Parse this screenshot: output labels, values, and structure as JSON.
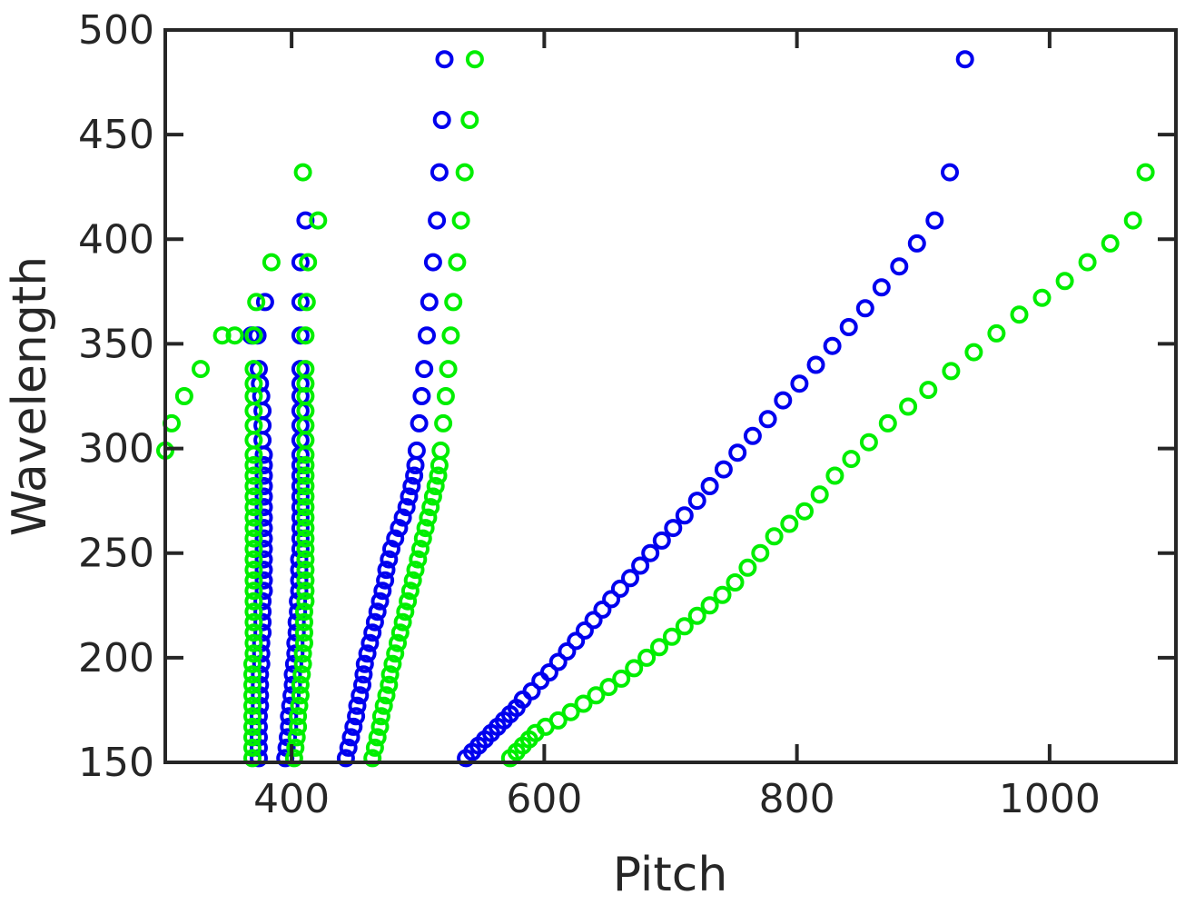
{
  "chart_data": {
    "type": "scatter",
    "xlabel": "Pitch",
    "ylabel": "Wavelength",
    "xlim": [
      300,
      1100
    ],
    "ylim": [
      150,
      500
    ],
    "xticks": [
      400,
      600,
      800,
      1000
    ],
    "yticks": [
      150,
      200,
      250,
      300,
      350,
      400,
      450,
      500
    ],
    "grid": false,
    "colors": {
      "blue": "#0000ee",
      "green": "#00ee00"
    },
    "series": [
      {
        "color": "#0000ee",
        "points": [
          [
            374,
            152
          ],
          [
            374,
            157
          ],
          [
            374,
            162
          ],
          [
            374,
            167
          ],
          [
            374,
            172
          ],
          [
            375,
            177
          ],
          [
            375,
            182
          ],
          [
            375,
            187
          ],
          [
            375,
            192
          ],
          [
            376,
            197
          ],
          [
            376,
            202
          ],
          [
            376,
            207
          ],
          [
            377,
            212
          ],
          [
            377,
            217
          ],
          [
            377,
            222
          ],
          [
            377,
            227
          ],
          [
            378,
            232
          ],
          [
            378,
            237
          ],
          [
            378,
            242
          ],
          [
            378,
            247
          ],
          [
            378,
            252
          ],
          [
            378,
            257
          ],
          [
            378,
            262
          ],
          [
            378,
            267
          ],
          [
            378,
            272
          ],
          [
            378,
            277
          ],
          [
            378,
            282
          ],
          [
            378,
            287
          ],
          [
            378,
            292
          ],
          [
            378,
            297
          ],
          [
            377,
            304
          ],
          [
            377,
            311
          ],
          [
            377,
            318
          ],
          [
            376,
            325
          ],
          [
            375,
            331
          ],
          [
            374,
            338
          ],
          [
            368,
            354
          ],
          [
            369,
            354
          ],
          [
            373,
            354
          ],
          [
            379,
            370
          ],
          [
            395,
            152
          ],
          [
            396,
            157
          ],
          [
            397,
            162
          ],
          [
            398,
            167
          ],
          [
            398,
            172
          ],
          [
            399,
            177
          ],
          [
            400,
            182
          ],
          [
            401,
            187
          ],
          [
            401,
            192
          ],
          [
            402,
            197
          ],
          [
            403,
            202
          ],
          [
            403,
            207
          ],
          [
            404,
            212
          ],
          [
            404,
            217
          ],
          [
            405,
            222
          ],
          [
            405,
            227
          ],
          [
            406,
            232
          ],
          [
            406,
            237
          ],
          [
            406,
            242
          ],
          [
            406,
            247
          ],
          [
            407,
            252
          ],
          [
            407,
            257
          ],
          [
            407,
            262
          ],
          [
            407,
            267
          ],
          [
            407,
            272
          ],
          [
            407,
            277
          ],
          [
            407,
            282
          ],
          [
            407,
            287
          ],
          [
            407,
            292
          ],
          [
            407,
            297
          ],
          [
            407,
            304
          ],
          [
            407,
            311
          ],
          [
            407,
            318
          ],
          [
            407,
            325
          ],
          [
            407,
            331
          ],
          [
            407,
            338
          ],
          [
            407,
            354
          ],
          [
            407,
            370
          ],
          [
            407,
            389
          ],
          [
            411,
            409
          ],
          [
            443,
            152
          ],
          [
            445,
            157
          ],
          [
            447,
            162
          ],
          [
            449,
            167
          ],
          [
            451,
            172
          ],
          [
            452,
            177
          ],
          [
            454,
            182
          ],
          [
            456,
            187
          ],
          [
            457,
            192
          ],
          [
            458,
            197
          ],
          [
            460,
            202
          ],
          [
            462,
            207
          ],
          [
            464,
            212
          ],
          [
            466,
            217
          ],
          [
            468,
            222
          ],
          [
            470,
            227
          ],
          [
            472,
            232
          ],
          [
            474,
            237
          ],
          [
            475,
            242
          ],
          [
            477,
            247
          ],
          [
            479,
            252
          ],
          [
            482,
            257
          ],
          [
            485,
            262
          ],
          [
            488,
            267
          ],
          [
            491,
            272
          ],
          [
            493,
            277
          ],
          [
            495,
            282
          ],
          [
            497,
            287
          ],
          [
            498,
            292
          ],
          [
            499,
            299
          ],
          [
            501,
            312
          ],
          [
            503,
            325
          ],
          [
            505,
            338
          ],
          [
            507,
            354
          ],
          [
            509,
            370
          ],
          [
            512,
            389
          ],
          [
            515,
            409
          ],
          [
            517,
            432
          ],
          [
            519,
            457
          ],
          [
            521,
            486
          ],
          [
            538,
            152
          ],
          [
            543,
            155
          ],
          [
            548,
            158
          ],
          [
            553,
            161
          ],
          [
            558,
            164
          ],
          [
            563,
            167
          ],
          [
            568,
            170
          ],
          [
            573,
            173
          ],
          [
            578,
            176
          ],
          [
            583,
            180
          ],
          [
            590,
            184
          ],
          [
            597,
            189
          ],
          [
            604,
            193
          ],
          [
            611,
            198
          ],
          [
            618,
            203
          ],
          [
            625,
            208
          ],
          [
            632,
            213
          ],
          [
            639,
            218
          ],
          [
            646,
            223
          ],
          [
            653,
            228
          ],
          [
            660,
            233
          ],
          [
            668,
            238
          ],
          [
            676,
            244
          ],
          [
            684,
            250
          ],
          [
            693,
            256
          ],
          [
            702,
            262
          ],
          [
            711,
            268
          ],
          [
            721,
            275
          ],
          [
            731,
            282
          ],
          [
            742,
            290
          ],
          [
            753,
            298
          ],
          [
            765,
            306
          ],
          [
            777,
            314
          ],
          [
            789,
            323
          ],
          [
            802,
            331
          ],
          [
            815,
            340
          ],
          [
            828,
            349
          ],
          [
            841,
            358
          ],
          [
            854,
            367
          ],
          [
            867,
            377
          ],
          [
            881,
            387
          ],
          [
            895,
            398
          ],
          [
            909,
            409
          ],
          [
            921,
            432
          ],
          [
            933,
            486
          ]
        ]
      },
      {
        "color": "#00ee00",
        "points": [
          [
            300,
            299
          ],
          [
            305,
            312
          ],
          [
            315,
            325
          ],
          [
            328,
            338
          ],
          [
            345,
            354
          ],
          [
            355,
            354
          ],
          [
            372,
            370
          ],
          [
            384,
            389
          ],
          [
            409,
            432
          ],
          [
            369,
            152
          ],
          [
            369,
            157
          ],
          [
            369,
            162
          ],
          [
            369,
            167
          ],
          [
            369,
            172
          ],
          [
            369,
            177
          ],
          [
            369,
            182
          ],
          [
            369,
            187
          ],
          [
            369,
            192
          ],
          [
            369,
            197
          ],
          [
            370,
            202
          ],
          [
            370,
            207
          ],
          [
            370,
            212
          ],
          [
            370,
            217
          ],
          [
            370,
            222
          ],
          [
            370,
            227
          ],
          [
            370,
            232
          ],
          [
            370,
            237
          ],
          [
            370,
            242
          ],
          [
            370,
            247
          ],
          [
            370,
            252
          ],
          [
            370,
            257
          ],
          [
            370,
            262
          ],
          [
            370,
            267
          ],
          [
            370,
            272
          ],
          [
            370,
            277
          ],
          [
            370,
            282
          ],
          [
            370,
            287
          ],
          [
            370,
            292
          ],
          [
            370,
            297
          ],
          [
            370,
            304
          ],
          [
            370,
            311
          ],
          [
            370,
            318
          ],
          [
            370,
            325
          ],
          [
            370,
            331
          ],
          [
            370,
            338
          ],
          [
            370,
            354
          ],
          [
            402,
            152
          ],
          [
            403,
            157
          ],
          [
            404,
            162
          ],
          [
            405,
            167
          ],
          [
            405,
            172
          ],
          [
            406,
            177
          ],
          [
            407,
            182
          ],
          [
            407,
            187
          ],
          [
            408,
            192
          ],
          [
            409,
            197
          ],
          [
            409,
            202
          ],
          [
            410,
            207
          ],
          [
            410,
            212
          ],
          [
            410,
            217
          ],
          [
            410,
            222
          ],
          [
            411,
            227
          ],
          [
            411,
            232
          ],
          [
            411,
            237
          ],
          [
            411,
            242
          ],
          [
            411,
            247
          ],
          [
            411,
            252
          ],
          [
            411,
            257
          ],
          [
            411,
            262
          ],
          [
            411,
            267
          ],
          [
            411,
            272
          ],
          [
            411,
            277
          ],
          [
            411,
            282
          ],
          [
            411,
            287
          ],
          [
            411,
            292
          ],
          [
            411,
            297
          ],
          [
            411,
            304
          ],
          [
            411,
            311
          ],
          [
            411,
            318
          ],
          [
            411,
            325
          ],
          [
            411,
            331
          ],
          [
            411,
            338
          ],
          [
            411,
            354
          ],
          [
            412,
            370
          ],
          [
            413,
            389
          ],
          [
            421,
            409
          ],
          [
            464,
            152
          ],
          [
            466,
            157
          ],
          [
            468,
            162
          ],
          [
            470,
            167
          ],
          [
            471,
            172
          ],
          [
            473,
            177
          ],
          [
            475,
            182
          ],
          [
            477,
            187
          ],
          [
            478,
            192
          ],
          [
            480,
            197
          ],
          [
            482,
            202
          ],
          [
            484,
            207
          ],
          [
            486,
            212
          ],
          [
            488,
            217
          ],
          [
            490,
            222
          ],
          [
            492,
            227
          ],
          [
            494,
            232
          ],
          [
            496,
            237
          ],
          [
            498,
            242
          ],
          [
            500,
            247
          ],
          [
            502,
            252
          ],
          [
            504,
            257
          ],
          [
            506,
            262
          ],
          [
            508,
            267
          ],
          [
            510,
            272
          ],
          [
            512,
            277
          ],
          [
            514,
            282
          ],
          [
            516,
            287
          ],
          [
            517,
            292
          ],
          [
            518,
            299
          ],
          [
            520,
            312
          ],
          [
            522,
            325
          ],
          [
            524,
            338
          ],
          [
            526,
            354
          ],
          [
            528,
            370
          ],
          [
            531,
            389
          ],
          [
            534,
            409
          ],
          [
            537,
            432
          ],
          [
            541,
            457
          ],
          [
            545,
            486
          ],
          [
            573,
            152
          ],
          [
            578,
            155
          ],
          [
            583,
            158
          ],
          [
            588,
            161
          ],
          [
            593,
            164
          ],
          [
            601,
            167
          ],
          [
            611,
            170
          ],
          [
            621,
            174
          ],
          [
            631,
            178
          ],
          [
            641,
            182
          ],
          [
            651,
            186
          ],
          [
            661,
            190
          ],
          [
            671,
            195
          ],
          [
            681,
            200
          ],
          [
            691,
            205
          ],
          [
            701,
            210
          ],
          [
            711,
            215
          ],
          [
            721,
            220
          ],
          [
            731,
            225
          ],
          [
            741,
            230
          ],
          [
            751,
            236
          ],
          [
            761,
            243
          ],
          [
            771,
            250
          ],
          [
            782,
            258
          ],
          [
            794,
            264
          ],
          [
            806,
            270
          ],
          [
            818,
            278
          ],
          [
            830,
            287
          ],
          [
            843,
            295
          ],
          [
            857,
            303
          ],
          [
            872,
            312
          ],
          [
            888,
            320
          ],
          [
            904,
            328
          ],
          [
            922,
            337
          ],
          [
            940,
            346
          ],
          [
            958,
            355
          ],
          [
            976,
            364
          ],
          [
            994,
            372
          ],
          [
            1012,
            380
          ],
          [
            1030,
            389
          ],
          [
            1048,
            398
          ],
          [
            1066,
            409
          ],
          [
            1076,
            432
          ]
        ]
      }
    ]
  }
}
